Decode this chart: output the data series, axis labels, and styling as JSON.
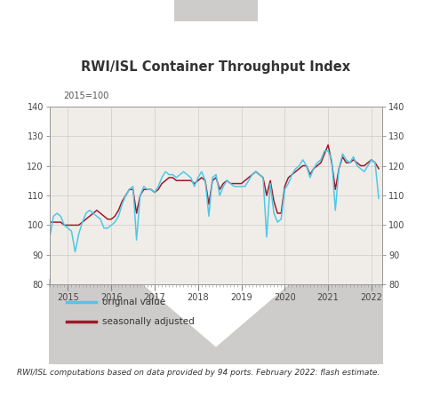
{
  "title": "RWI/ISL Container Throughput Index",
  "subtitle": "2015=100",
  "footnote": "RWI/ISL computations based on data provided by 94 ports. February 2022: flash estimate.",
  "ylim": [
    80,
    140
  ],
  "yticks": [
    80,
    90,
    100,
    110,
    120,
    130,
    140
  ],
  "original_color": "#4DC8E8",
  "adjusted_color": "#9B1B2A",
  "panel_bg": "#D9D7D2",
  "chart_bg": "#F0EDE8",
  "title_bg": "#E8E5E0",
  "grid_color": "#C8C8C8",
  "legend_label_original": "original value",
  "legend_label_adjusted": "seasonally adjusted",
  "xlim": [
    2014.58,
    2022.25
  ],
  "xticks": [
    2015,
    2016,
    2017,
    2018,
    2019,
    2020,
    2021,
    2022
  ],
  "original_values": [
    101,
    103,
    102,
    101,
    99,
    98,
    91,
    96,
    103,
    104,
    103,
    100,
    99,
    98,
    91,
    97,
    101,
    104,
    105,
    104,
    103,
    102,
    99,
    99,
    100,
    101,
    103,
    107,
    110,
    112,
    113,
    95,
    110,
    113,
    112,
    112,
    111,
    113,
    116,
    118,
    117,
    117,
    116,
    117,
    118,
    117,
    116,
    113,
    116,
    118,
    115,
    103,
    116,
    117,
    110,
    113,
    115,
    114,
    113,
    113,
    113,
    113,
    115,
    117,
    118,
    117,
    116,
    96,
    114,
    104,
    101,
    102,
    112,
    114,
    117,
    119,
    120,
    122,
    120,
    116,
    119,
    121,
    122,
    125,
    125,
    122,
    105,
    119,
    124,
    122,
    121,
    123,
    120,
    119,
    118,
    120,
    122,
    121,
    109
  ],
  "adjusted_values": [
    101,
    101,
    100,
    100,
    100,
    100,
    101,
    101,
    101,
    101,
    101,
    100,
    100,
    100,
    100,
    100,
    101,
    102,
    103,
    104,
    105,
    104,
    103,
    102,
    102,
    103,
    105,
    108,
    110,
    112,
    112,
    104,
    110,
    112,
    112,
    112,
    111,
    112,
    114,
    115,
    116,
    116,
    115,
    115,
    115,
    115,
    115,
    114,
    115,
    116,
    115,
    107,
    115,
    116,
    112,
    114,
    115,
    114,
    114,
    114,
    114,
    115,
    116,
    117,
    118,
    117,
    116,
    110,
    115,
    108,
    104,
    104,
    113,
    116,
    117,
    118,
    119,
    120,
    120,
    117,
    119,
    120,
    121,
    124,
    127,
    121,
    112,
    119,
    123,
    121,
    121,
    122,
    121,
    120,
    120,
    121,
    122,
    121,
    119
  ],
  "n_months": 99
}
